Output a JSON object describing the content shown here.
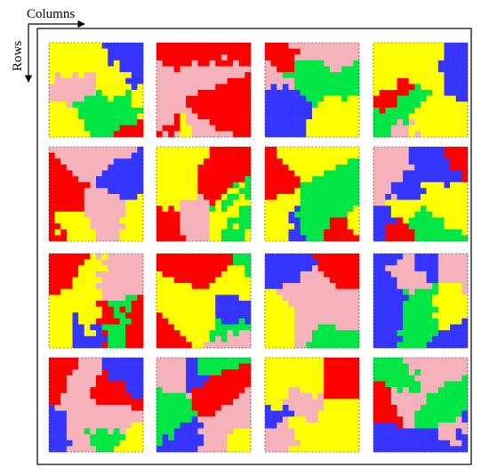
{
  "axes": {
    "columns": "Columns",
    "rows": "Rows"
  }
}
